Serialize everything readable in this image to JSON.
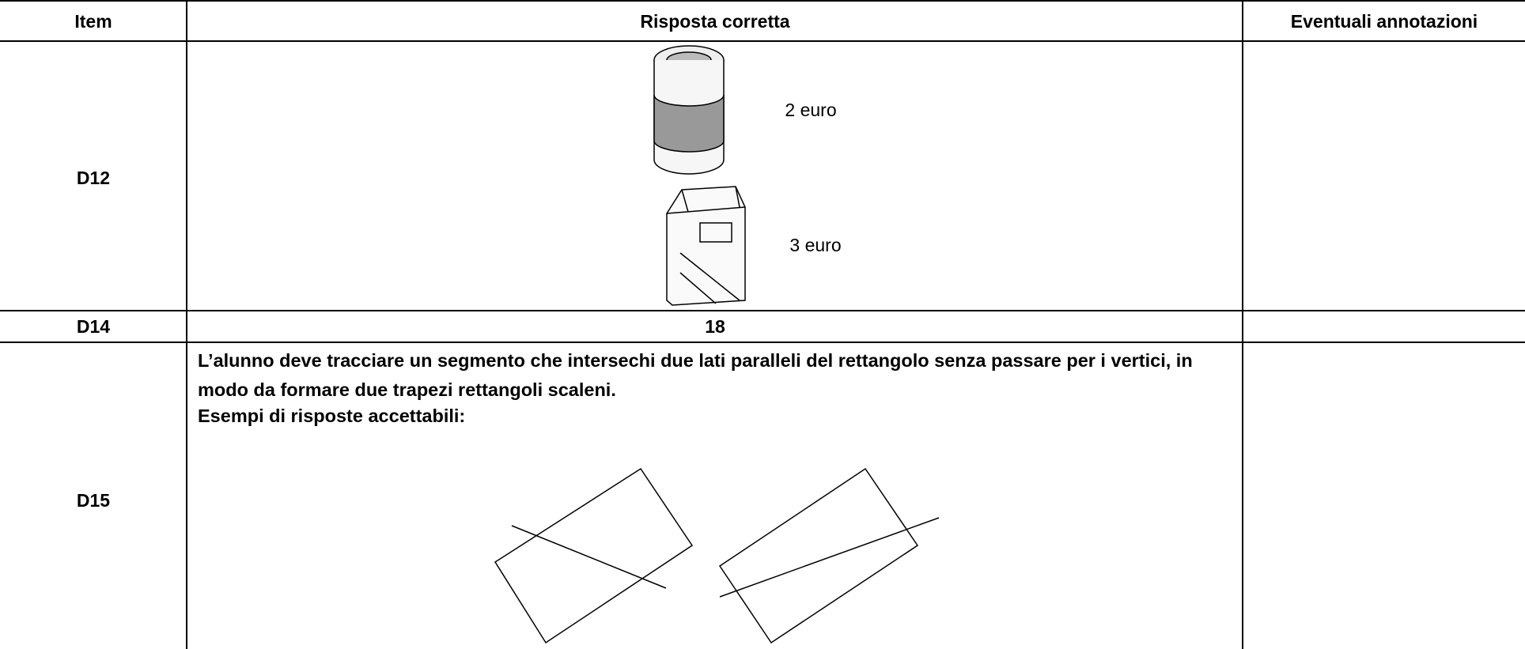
{
  "table": {
    "header": [
      "Item",
      "Risposta corretta",
      "Eventuali annotazioni"
    ],
    "rows": [
      {
        "item": "D12",
        "answer": {
          "prices": [
            "2 euro",
            "3 euro"
          ]
        },
        "notes": null
      },
      {
        "item": "D14",
        "answer": "18",
        "notes": null
      },
      {
        "item": "D15",
        "answer": {
          "text": "L’alunno deve tracciare un segmento che intersechi due lati paralleli del rettangolo senza passare per i vertici, in modo da formare due trapezi rettangoli scaleni.",
          "examples": "Esempi di risposte accettabili:"
        },
        "notes": null
      }
    ]
  }
}
